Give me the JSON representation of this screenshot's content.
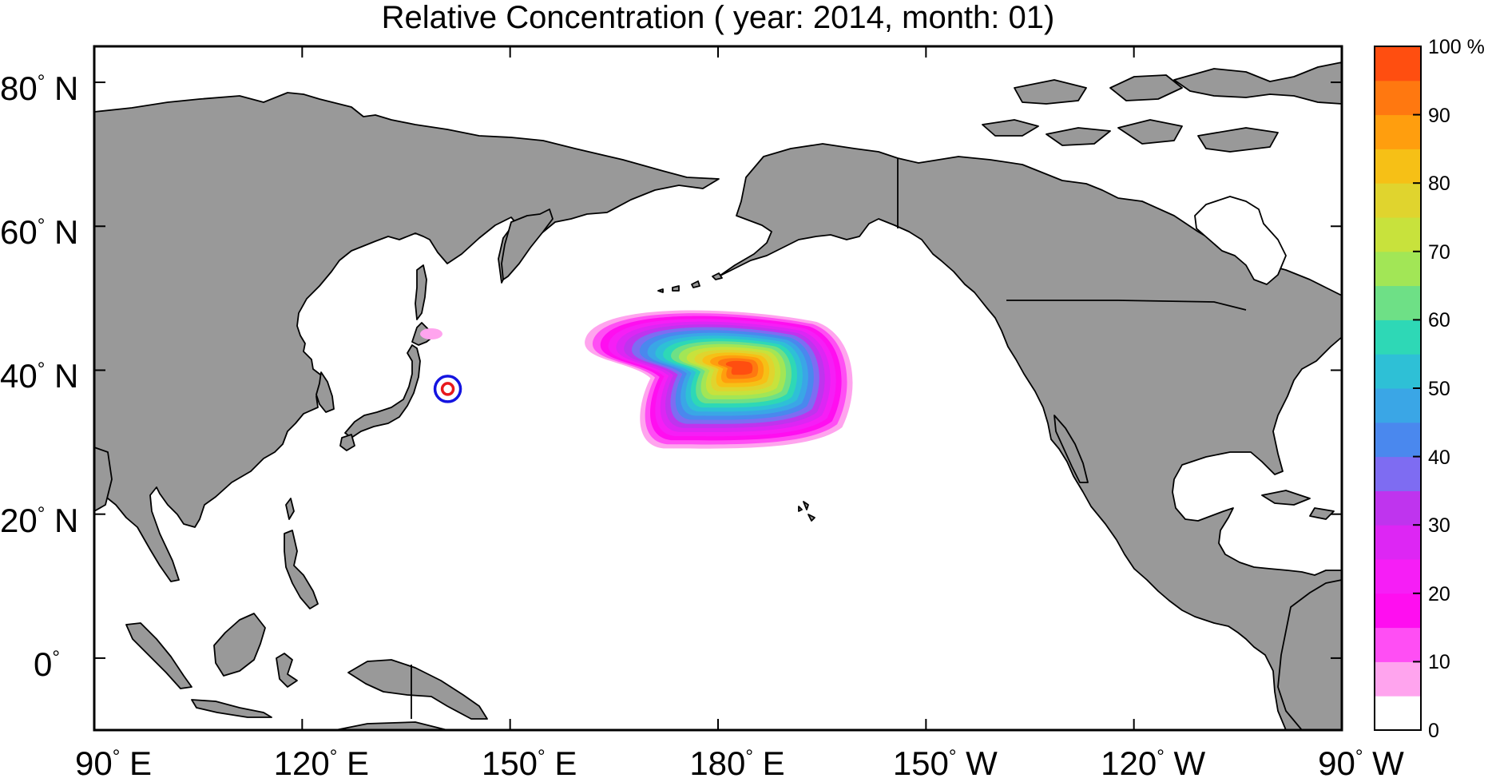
{
  "title": "Relative Concentration ( year: 2014, month: 01)",
  "map": {
    "projection": "equirectangular",
    "lon_range": [
      "90° E",
      "270° E (90° W)"
    ],
    "lat_range": [
      "-10°",
      "85° N"
    ],
    "land_color": "#999999",
    "ocean_color": "#ffffff",
    "coastline_color": "#000000",
    "lat_labels": [
      {
        "deg": "80",
        "hem": " N",
        "lat": 80
      },
      {
        "deg": "60",
        "hem": " N",
        "lat": 60
      },
      {
        "deg": "40",
        "hem": " N",
        "lat": 40
      },
      {
        "deg": "20",
        "hem": " N",
        "lat": 20
      },
      {
        "deg": "0",
        "hem": "",
        "lat": 0
      }
    ],
    "lon_labels": [
      {
        "deg": "90",
        "hem": " E",
        "lon": 90
      },
      {
        "deg": "120",
        "hem": " E",
        "lon": 120
      },
      {
        "deg": "150",
        "hem": " E",
        "lon": 150
      },
      {
        "deg": "180",
        "hem": " E",
        "lon": 180
      },
      {
        "deg": "150",
        "hem": " W",
        "lon": 210
      },
      {
        "deg": "120",
        "hem": " W",
        "lon": 240
      },
      {
        "deg": "90",
        "hem": " W",
        "lon": 270
      }
    ],
    "source_marker": {
      "lon": 141.0,
      "lat": 37.4,
      "inner_color": "#e8191c",
      "outer_color": "#1414e0"
    },
    "plume": {
      "peak_lon": 185,
      "peak_lat": 40.5,
      "peak_percent": 100
    }
  },
  "colorbar": {
    "unit_label": "100 %",
    "tick_labels": [
      "90",
      "80",
      "70",
      "60",
      "50",
      "40",
      "30",
      "20",
      "10",
      "0"
    ],
    "levels": [
      {
        "from": 0,
        "to": 5,
        "color": "#ffffff"
      },
      {
        "from": 5,
        "to": 10,
        "color": "#ffa4ee"
      },
      {
        "from": 10,
        "to": 15,
        "color": "#ff4ef4"
      },
      {
        "from": 15,
        "to": 20,
        "color": "#ff0ef0"
      },
      {
        "from": 20,
        "to": 25,
        "color": "#f61ef6"
      },
      {
        "from": 25,
        "to": 30,
        "color": "#dd26f4"
      },
      {
        "from": 30,
        "to": 35,
        "color": "#bf34ee"
      },
      {
        "from": 35,
        "to": 40,
        "color": "#7e6cf2"
      },
      {
        "from": 40,
        "to": 45,
        "color": "#4a88ee"
      },
      {
        "from": 45,
        "to": 50,
        "color": "#3aa6e6"
      },
      {
        "from": 50,
        "to": 55,
        "color": "#2ec0d6"
      },
      {
        "from": 55,
        "to": 60,
        "color": "#2ed8b6"
      },
      {
        "from": 60,
        "to": 65,
        "color": "#6ee086"
      },
      {
        "from": 65,
        "to": 70,
        "color": "#a2e656"
      },
      {
        "from": 70,
        "to": 75,
        "color": "#c8e23c"
      },
      {
        "from": 75,
        "to": 80,
        "color": "#e0d42e"
      },
      {
        "from": 80,
        "to": 85,
        "color": "#f6c016"
      },
      {
        "from": 85,
        "to": 90,
        "color": "#ff9e0e"
      },
      {
        "from": 90,
        "to": 95,
        "color": "#ff7810"
      },
      {
        "from": 95,
        "to": 100,
        "color": "#ff4e10"
      }
    ]
  }
}
